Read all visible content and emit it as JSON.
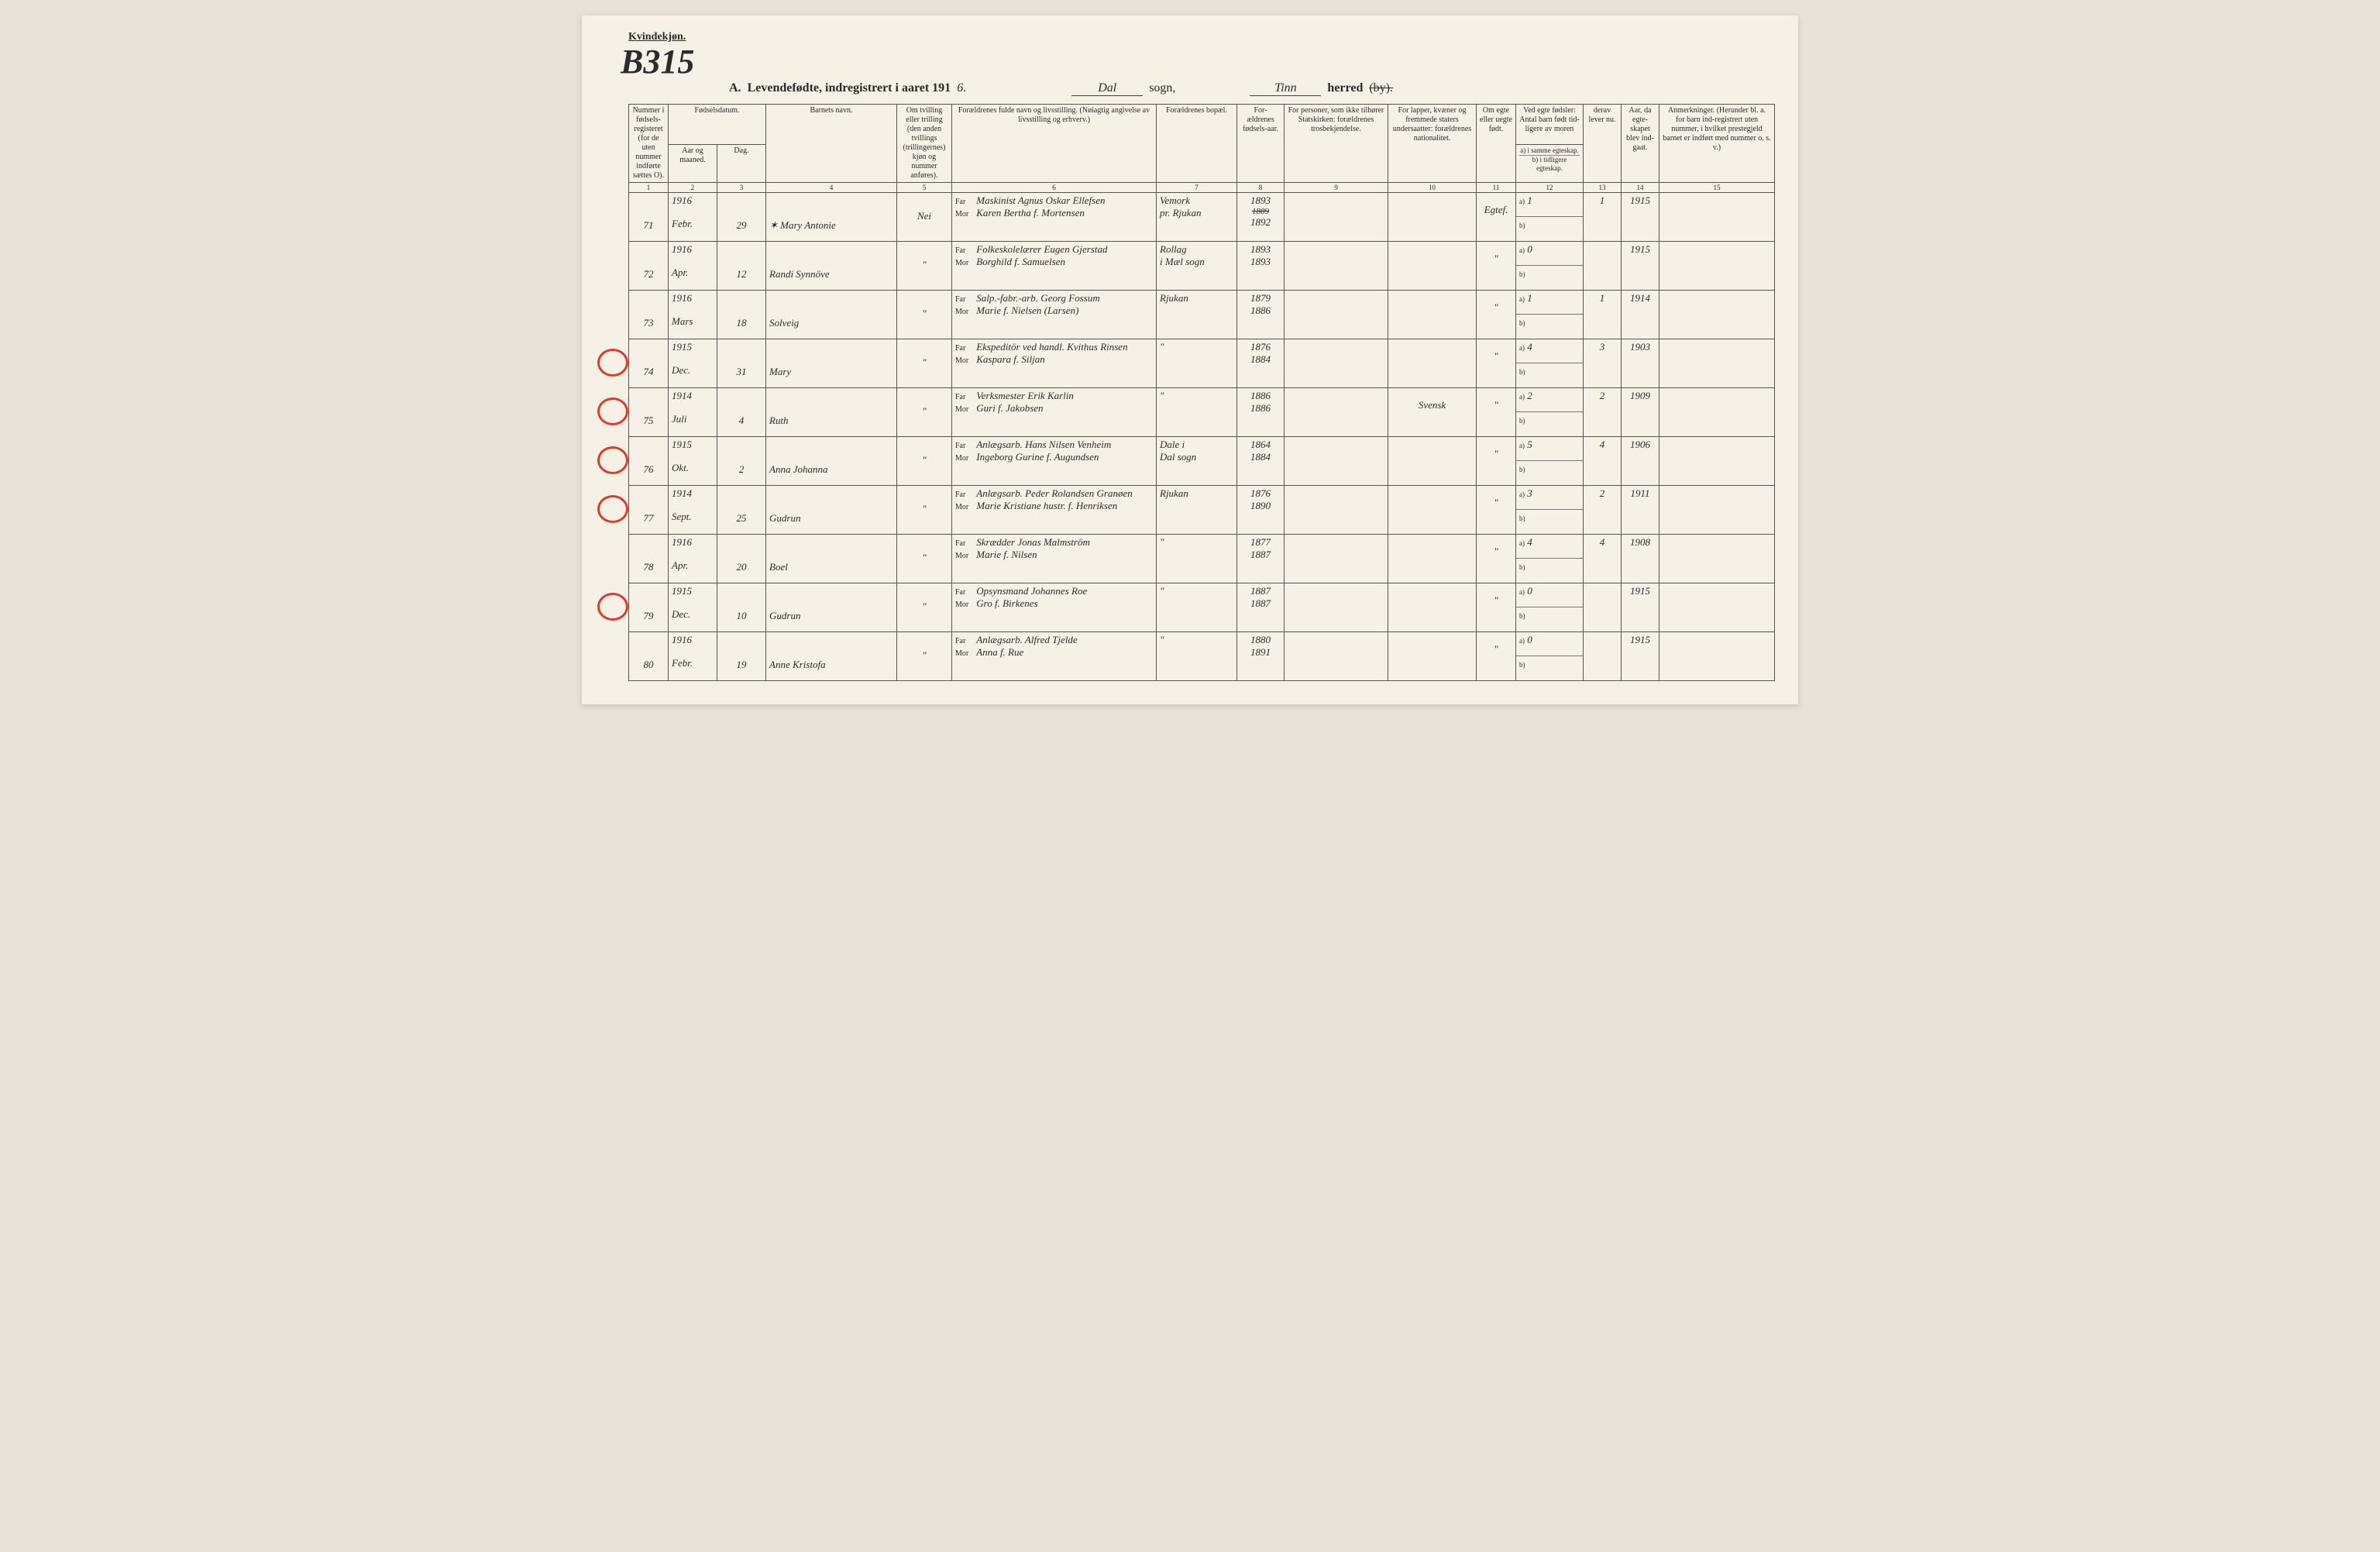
{
  "header": {
    "gender_label": "Kvindekjøn.",
    "big_annotation": "B315",
    "title_prefix": "A.",
    "title_main": "Levendefødte, indregistrert i aaret 191",
    "year_suffix": "6.",
    "sogn_label": "sogn,",
    "sogn_value": "Dal",
    "herred_label": "herred",
    "herred_strike": "(by).",
    "herred_value": "Tinn"
  },
  "columns": {
    "c1": "Nummer i fødsels-registeret (for de uten nummer indførte sættes O).",
    "c2a": "Fødselsdatum.",
    "c2": "Aar og maaned.",
    "c3": "Dag.",
    "c4": "Barnets navn.",
    "c5": "Om tvilling eller trilling (den anden tvillings (trillingernes) kjøn og nummer anføres).",
    "c6": "Forældrenes fulde navn og livsstilling. (Nøiagtig angivelse av livsstilling og erhverv.)",
    "c7": "Forældrenes bopæl.",
    "c8": "For-ældrenes fødsels-aar.",
    "c9": "For personer, som ikke tilhører Statskirken: forældrenes trosbekjendelse.",
    "c10": "For lapper, kvæner og fremmede staters undersaatter: forældrenes nationalitet.",
    "c11": "Om egte eller uegte født.",
    "c12": "Ved egte fødsler: Antal barn født tid-ligere av moren",
    "c12a": "a) i samme egteskap.",
    "c12b": "b) i tidligere egteskap.",
    "c13": "derav lever nu.",
    "c14": "Aar, da egte-skapet blev ind-gaat.",
    "c15": "Anmerkninger. (Herunder bl. a. for barn ind-registrert uten nummer, i hvilket prestegjeld barnet er indført med nummer o. s. v.)"
  },
  "colnums": [
    "1",
    "2",
    "3",
    "4",
    "5",
    "6",
    "7",
    "8",
    "9",
    "10",
    "11",
    "12",
    "13",
    "14",
    "15"
  ],
  "far_label": "Far",
  "mor_label": "Mor",
  "rows": [
    {
      "num": "71",
      "year": "1916",
      "month": "Febr.",
      "day": "29",
      "name": "✶ Mary Antonie",
      "twin": "Nei",
      "far": "Maskinist Agnus Oskar Ellefsen",
      "mor": "Karen Bertha f. Mortensen",
      "bopel_top": "Vemork",
      "bopel_bot": "pr. Rjukan",
      "faar": "1893",
      "faar_strike": "1889",
      "maar": "1892",
      "c9": "",
      "c10": "",
      "egte": "Egtef.",
      "a": "1",
      "b": "",
      "lever": "1",
      "aar_egt": "1915",
      "anm": ""
    },
    {
      "num": "72",
      "year": "1916",
      "month": "Apr.",
      "day": "12",
      "name": "Randi Synnöve",
      "twin": "\"",
      "far": "Folkeskolelærer Eugen Gjerstad",
      "mor": "Borghild f. Samuelsen",
      "bopel_top": "Rollag",
      "bopel_bot": "i Mæl sogn",
      "faar": "1893",
      "maar": "1893",
      "c9": "",
      "c10": "",
      "egte": "\"",
      "a": "0",
      "b": "",
      "lever": "",
      "aar_egt": "1915",
      "anm": ""
    },
    {
      "num": "73",
      "year": "1916",
      "month": "Mars",
      "day": "18",
      "name": "Solveig",
      "twin": "\"",
      "far": "Salp.-fabr.-arb. Georg Fossum",
      "mor": "Marie f. Nielsen (Larsen)",
      "bopel_top": "Rjukan",
      "bopel_bot": "",
      "faar": "1879",
      "maar": "1886",
      "c9": "",
      "c10": "",
      "egte": "\"",
      "a": "1",
      "b": "",
      "lever": "1",
      "aar_egt": "1914",
      "anm": ""
    },
    {
      "num": "74",
      "year": "1915",
      "month": "Dec.",
      "day": "31",
      "name": "Mary",
      "twin": "\"",
      "far": "Ekspeditör ved handl. Kvithus Rinsen",
      "mor": "Kaspara f. Siljan",
      "bopel_top": "\"",
      "bopel_bot": "",
      "faar": "1876",
      "maar": "1884",
      "c9": "",
      "c10": "",
      "egte": "\"",
      "a": "4",
      "b": "",
      "lever": "3",
      "aar_egt": "1903",
      "anm": "",
      "red_circle": true
    },
    {
      "num": "75",
      "year": "1914",
      "month": "Juli",
      "day": "4",
      "name": "Ruth",
      "twin": "\"",
      "far": "Verksmester Erik Karlin",
      "mor": "Guri f. Jakobsen",
      "bopel_top": "\"",
      "bopel_bot": "",
      "faar": "1886",
      "maar": "1886",
      "c9": "",
      "c10": "Svensk",
      "egte": "\"",
      "a": "2",
      "b": "",
      "lever": "2",
      "aar_egt": "1909",
      "anm": "",
      "red_circle": true
    },
    {
      "num": "76",
      "year": "1915",
      "month": "Okt.",
      "day": "2",
      "name": "Anna Johanna",
      "twin": "\"",
      "far": "Anlægsarb. Hans Nilsen Venheim",
      "mor": "Ingeborg Gurine f. Augundsen",
      "bopel_top": "Dale i",
      "bopel_bot": "Dal sogn",
      "faar": "1864",
      "maar": "1884",
      "c9": "",
      "c10": "",
      "egte": "\"",
      "a": "5",
      "b": "",
      "lever": "4",
      "aar_egt": "1906",
      "anm": "",
      "red_circle": true
    },
    {
      "num": "77",
      "year": "1914",
      "month": "Sept.",
      "day": "25",
      "name": "Gudrun",
      "twin": "\"",
      "far": "Anlægsarb. Peder Rolandsen Granøen",
      "mor": "Marie Kristiane hustr. f. Henriksen",
      "bopel_top": "Rjukan",
      "bopel_bot": "",
      "faar": "1876",
      "maar": "1890",
      "c9": "",
      "c10": "",
      "egte": "\"",
      "a": "3",
      "b": "",
      "lever": "2",
      "aar_egt": "1911",
      "anm": "",
      "red_circle": true
    },
    {
      "num": "78",
      "year": "1916",
      "month": "Apr.",
      "day": "20",
      "name": "Boel",
      "twin": "\"",
      "far": "Skrædder Jonas Malmström",
      "mor": "Marie f. Nilsen",
      "bopel_top": "\"",
      "bopel_bot": "",
      "faar": "1877",
      "maar": "1887",
      "c9": "",
      "c10": "",
      "egte": "\"",
      "a": "4",
      "b": "",
      "lever": "4",
      "aar_egt": "1908",
      "anm": ""
    },
    {
      "num": "79",
      "year": "1915",
      "month": "Dec.",
      "day": "10",
      "name": "Gudrun",
      "twin": "\"",
      "far": "Opsynsmand Johannes Roe",
      "mor": "Gro f. Birkenes",
      "bopel_top": "\"",
      "bopel_bot": "",
      "faar": "1887",
      "maar": "1887",
      "c9": "",
      "c10": "",
      "egte": "\"",
      "a": "0",
      "b": "",
      "lever": "",
      "aar_egt": "1915",
      "anm": "",
      "red_circle": true
    },
    {
      "num": "80",
      "year": "1916",
      "month": "Febr.",
      "day": "19",
      "name": "Anne Kristofa",
      "twin": "\"",
      "far": "Anlægsarb. Alfred Tjelde",
      "mor": "Anna f. Rue",
      "bopel_top": "\"",
      "bopel_bot": "",
      "faar": "1880",
      "maar": "1891",
      "c9": "",
      "c10": "",
      "egte": "\"",
      "a": "0",
      "b": "",
      "lever": "",
      "aar_egt": "1915",
      "anm": ""
    }
  ]
}
